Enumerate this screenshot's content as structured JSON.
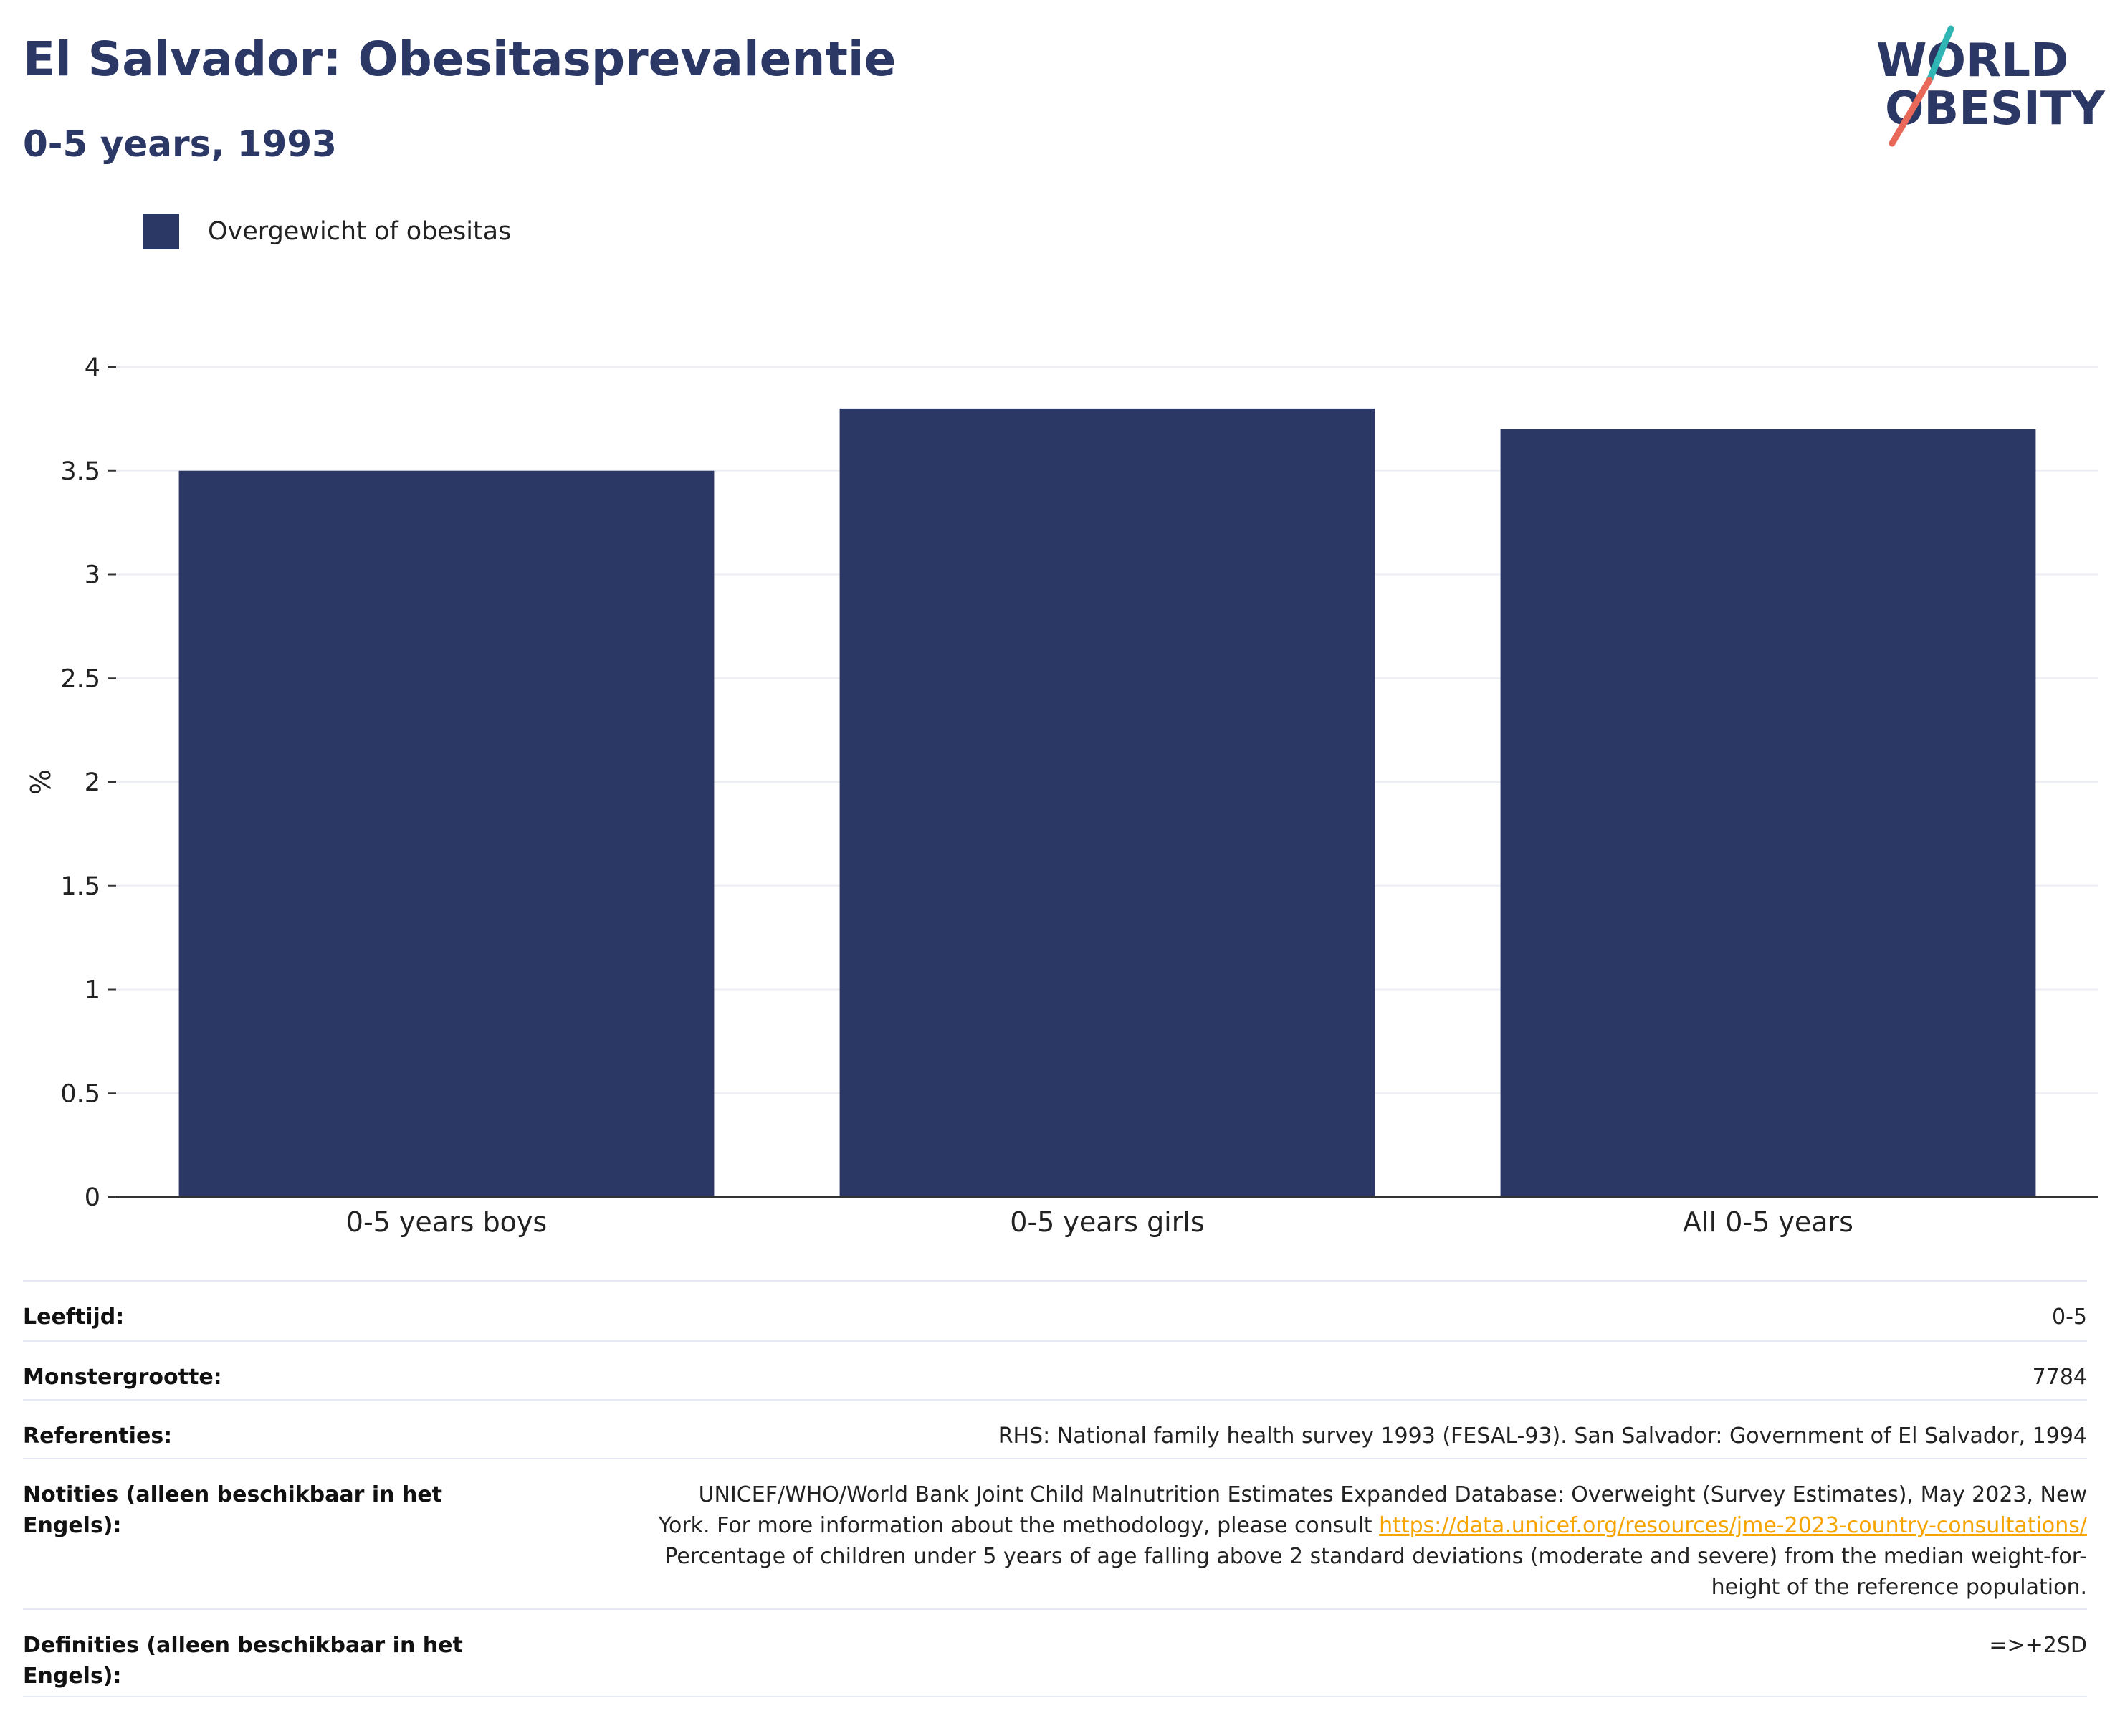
{
  "header": {
    "title": "El Salvador: Obesitasprevalentie",
    "subtitle": "0-5 years, 1993"
  },
  "logo": {
    "line1": "WORLD",
    "line2": "OBESITY"
  },
  "legend": {
    "label": "Overgewicht of obesitas"
  },
  "chart_data": {
    "type": "bar",
    "categories": [
      "0-5 years boys",
      "0-5 years girls",
      "All 0-5 years"
    ],
    "series": [
      {
        "name": "Overgewicht of obesitas",
        "values": [
          3.5,
          3.8,
          3.7
        ]
      }
    ],
    "ylabel": "%",
    "ylim": [
      0,
      4
    ],
    "yticks": [
      0,
      0.5,
      1,
      1.5,
      2,
      2.5,
      3,
      3.5,
      4
    ],
    "ytick_labels": [
      "0",
      "0.5",
      "1",
      "1.5",
      "2",
      "2.5",
      "3",
      "3.5",
      "4"
    ],
    "grid": true,
    "legend_position": "top-left",
    "bar_color": "#2b3765"
  },
  "info": {
    "age_label": "Leeftijd:",
    "age_value": "0-5",
    "sample_label": "Monstergrootte:",
    "sample_value": "7784",
    "refs_label": "Referenties:",
    "refs_value": "RHS: National family health survey 1993 (FESAL-93). San Salvador: Government of El Salvador, 1994",
    "notes_label": "Notities (alleen beschikbaar in het Engels):",
    "notes_line1": "UNICEF/WHO/World Bank Joint Child Malnutrition Estimates Expanded Database: Overweight (Survey Estimates), May 2023, New",
    "notes_line2_prefix": "York. For more information about the methodology, please consult ",
    "notes_link": "https://data.unicef.org/resources/jme-2023-country-consultations/",
    "notes_line3": "Percentage of children under 5 years of age falling above 2 standard deviations (moderate and severe) from the median weight-for-",
    "notes_line4": "height of the reference population.",
    "defs_label": "Definities (alleen beschikbaar in het Engels):",
    "defs_value": "=>+2SD"
  },
  "colors": {
    "brand": "#2b3765",
    "accent_teal": "#2fb5b4",
    "accent_red": "#e8685a",
    "link": "#f5a400"
  }
}
